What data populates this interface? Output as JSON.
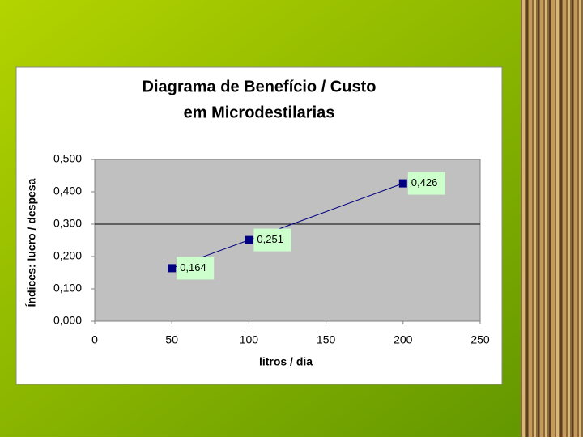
{
  "chart_data": {
    "type": "line",
    "title": "Diagrama de Benefício / Custo",
    "subtitle": "em Microdestilarias",
    "x_label": "litros / dia",
    "y_label": "Índices: lucro / despesa",
    "x": [
      50,
      100,
      200
    ],
    "series": [
      {
        "name": null,
        "color": "#000080",
        "values": [
          0.164,
          0.251,
          0.426
        ],
        "value_labels": [
          "0,164",
          "0,251",
          "0,426"
        ]
      }
    ],
    "xlim": [
      0,
      250
    ],
    "xticks": [
      0,
      50,
      100,
      150,
      200,
      250
    ],
    "ylim": [
      0,
      0.5
    ],
    "yticks": [
      {
        "value": 0,
        "label": "0,000"
      },
      {
        "value": 0.1,
        "label": "0,100"
      },
      {
        "value": 0.2,
        "label": "0,200"
      },
      {
        "value": 0.3,
        "label": "0,300"
      },
      {
        "value": 0.4,
        "label": "0,400"
      },
      {
        "value": 0.5,
        "label": "0,500"
      }
    ],
    "ygrid": [
      0.3
    ]
  }
}
